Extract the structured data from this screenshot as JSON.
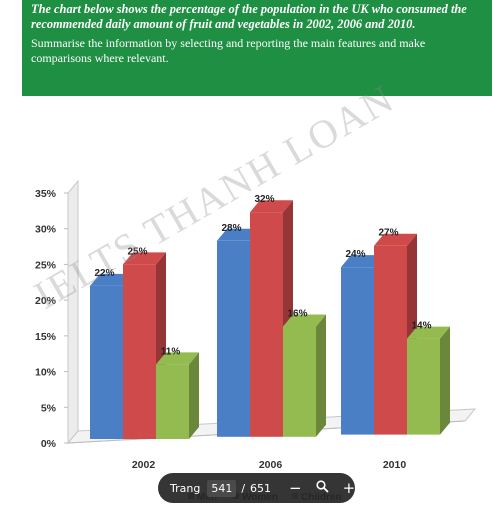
{
  "task": {
    "title": "The chart below shows the percentage of the population in the UK who consumed the recommended daily amount of fruit and vegetables in 2002, 2006 and 2010.",
    "instruction": "Summarise the information by selecting and reporting the main features and make comparisons where relevant."
  },
  "watermark": "IELTS THANH LOAN",
  "chart_data": {
    "type": "bar",
    "title": "",
    "xlabel": "",
    "ylabel": "",
    "categories": [
      "2002",
      "2006",
      "2010"
    ],
    "series": [
      {
        "name": "Men",
        "values": [
          22,
          28,
          24
        ],
        "color": "#4a7fc6"
      },
      {
        "name": "Women",
        "values": [
          25,
          32,
          27
        ],
        "color": "#cf4a4a"
      },
      {
        "name": "Children",
        "values": [
          11,
          16,
          14
        ],
        "color": "#93bb50"
      }
    ],
    "value_labels": [
      "22%",
      "25%",
      "11%",
      "28%",
      "32%",
      "16%",
      "24%",
      "27%",
      "14%"
    ],
    "yticks": [
      "0%",
      "5%",
      "10%",
      "15%",
      "20%",
      "25%",
      "30%",
      "35%"
    ],
    "ylim": [
      0,
      35
    ],
    "grid": false,
    "three_d": true,
    "legend_position": "bottom"
  },
  "viewer": {
    "page_label": "Trang",
    "current_page": "541",
    "separator": "/",
    "total_pages": "651",
    "zoom_out_icon": "minus-icon",
    "zoom_icon": "magnifier-icon",
    "zoom_in_icon": "plus-icon"
  }
}
